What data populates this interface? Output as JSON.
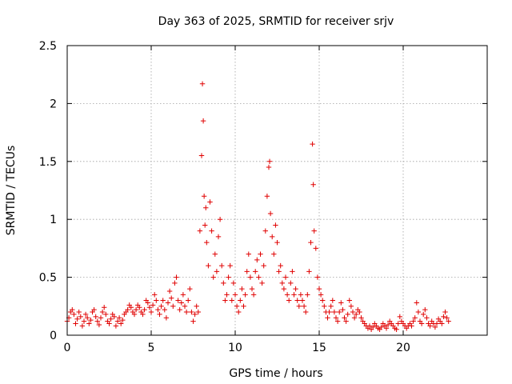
{
  "chart_data": {
    "type": "scatter",
    "title": "Day 363 of 2025, SRMTID for receiver srjv",
    "xlabel": "GPS time / hours",
    "ylabel": "SRMTID / TECUs",
    "xlim": [
      0,
      25
    ],
    "ylim": [
      0,
      2.5
    ],
    "xticks": [
      "0",
      "5",
      "10",
      "15",
      "20"
    ],
    "yticks": [
      "0",
      "0.5",
      "1",
      "1.5",
      "2",
      "2.5"
    ],
    "grid": true,
    "marker": "plus",
    "color": "#e00000",
    "series": [
      {
        "name": "SRMTID",
        "x": [
          0.0,
          0.1,
          0.2,
          0.3,
          0.4,
          0.5,
          0.6,
          0.7,
          0.8,
          0.9,
          1.0,
          1.1,
          1.2,
          1.3,
          1.4,
          1.5,
          1.6,
          1.7,
          1.8,
          1.9,
          2.0,
          2.1,
          2.2,
          2.3,
          2.4,
          2.5,
          2.6,
          2.7,
          2.8,
          2.9,
          3.0,
          3.1,
          3.2,
          3.3,
          3.4,
          3.5,
          3.6,
          3.7,
          3.8,
          3.9,
          4.0,
          4.1,
          4.2,
          4.3,
          4.4,
          4.5,
          4.6,
          4.7,
          4.8,
          4.9,
          5.0,
          5.1,
          5.2,
          5.3,
          5.4,
          5.5,
          5.6,
          5.7,
          5.8,
          5.9,
          6.0,
          6.1,
          6.2,
          6.3,
          6.4,
          6.5,
          6.6,
          6.7,
          6.8,
          6.9,
          7.0,
          7.1,
          7.2,
          7.3,
          7.4,
          7.5,
          7.6,
          7.7,
          7.8,
          7.9,
          8.0,
          8.05,
          8.1,
          8.15,
          8.2,
          8.25,
          8.3,
          8.4,
          8.5,
          8.6,
          8.7,
          8.8,
          8.9,
          9.0,
          9.1,
          9.2,
          9.3,
          9.4,
          9.5,
          9.6,
          9.7,
          9.8,
          9.9,
          10.0,
          10.1,
          10.2,
          10.3,
          10.4,
          10.5,
          10.6,
          10.7,
          10.8,
          10.9,
          11.0,
          11.1,
          11.2,
          11.3,
          11.4,
          11.5,
          11.6,
          11.7,
          11.8,
          11.9,
          12.0,
          12.05,
          12.1,
          12.2,
          12.3,
          12.4,
          12.5,
          12.6,
          12.7,
          12.8,
          12.9,
          13.0,
          13.1,
          13.2,
          13.3,
          13.4,
          13.5,
          13.6,
          13.7,
          13.8,
          13.9,
          14.0,
          14.1,
          14.2,
          14.3,
          14.4,
          14.5,
          14.6,
          14.65,
          14.7,
          14.8,
          14.9,
          15.0,
          15.1,
          15.2,
          15.3,
          15.4,
          15.5,
          15.6,
          15.7,
          15.8,
          15.9,
          16.0,
          16.1,
          16.2,
          16.3,
          16.4,
          16.5,
          16.6,
          16.7,
          16.8,
          16.9,
          17.0,
          17.1,
          17.2,
          17.3,
          17.4,
          17.5,
          17.6,
          17.7,
          17.8,
          17.9,
          18.0,
          18.1,
          18.2,
          18.3,
          18.4,
          18.5,
          18.6,
          18.7,
          18.8,
          18.9,
          19.0,
          19.1,
          19.2,
          19.3,
          19.4,
          19.5,
          19.6,
          19.7,
          19.8,
          19.9,
          20.0,
          20.1,
          20.2,
          20.3,
          20.4,
          20.5,
          20.6,
          20.7,
          20.8,
          20.9,
          21.0,
          21.1,
          21.2,
          21.3,
          21.4,
          21.5,
          21.6,
          21.7,
          21.8,
          21.9,
          22.0,
          22.1,
          22.2,
          22.3,
          22.4,
          22.5,
          22.6,
          22.7
        ],
        "y": [
          0.12,
          0.15,
          0.2,
          0.22,
          0.18,
          0.1,
          0.14,
          0.2,
          0.16,
          0.08,
          0.12,
          0.18,
          0.15,
          0.1,
          0.13,
          0.2,
          0.22,
          0.16,
          0.12,
          0.09,
          0.15,
          0.2,
          0.24,
          0.18,
          0.12,
          0.1,
          0.14,
          0.18,
          0.16,
          0.08,
          0.12,
          0.15,
          0.1,
          0.13,
          0.18,
          0.2,
          0.22,
          0.26,
          0.24,
          0.2,
          0.18,
          0.22,
          0.26,
          0.24,
          0.2,
          0.18,
          0.22,
          0.3,
          0.28,
          0.24,
          0.2,
          0.26,
          0.35,
          0.3,
          0.22,
          0.18,
          0.25,
          0.3,
          0.22,
          0.15,
          0.28,
          0.38,
          0.32,
          0.25,
          0.45,
          0.5,
          0.3,
          0.22,
          0.28,
          0.35,
          0.25,
          0.2,
          0.3,
          0.4,
          0.2,
          0.12,
          0.18,
          0.25,
          0.2,
          0.9,
          1.55,
          2.17,
          1.85,
          1.2,
          0.95,
          1.1,
          0.8,
          0.6,
          1.15,
          0.9,
          0.5,
          0.7,
          0.55,
          0.85,
          1.0,
          0.6,
          0.45,
          0.3,
          0.35,
          0.5,
          0.6,
          0.3,
          0.45,
          0.35,
          0.25,
          0.2,
          0.3,
          0.4,
          0.25,
          0.35,
          0.55,
          0.7,
          0.5,
          0.4,
          0.35,
          0.55,
          0.65,
          0.5,
          0.7,
          0.45,
          0.6,
          0.9,
          1.2,
          1.45,
          1.5,
          1.05,
          0.85,
          0.7,
          0.95,
          0.8,
          0.55,
          0.6,
          0.45,
          0.4,
          0.5,
          0.35,
          0.3,
          0.45,
          0.55,
          0.35,
          0.4,
          0.3,
          0.25,
          0.35,
          0.3,
          0.25,
          0.2,
          0.35,
          0.55,
          0.8,
          1.65,
          1.3,
          0.9,
          0.75,
          0.5,
          0.4,
          0.35,
          0.3,
          0.25,
          0.2,
          0.15,
          0.2,
          0.25,
          0.3,
          0.2,
          0.15,
          0.12,
          0.2,
          0.28,
          0.22,
          0.15,
          0.12,
          0.18,
          0.3,
          0.25,
          0.2,
          0.15,
          0.18,
          0.22,
          0.2,
          0.15,
          0.12,
          0.1,
          0.08,
          0.06,
          0.08,
          0.05,
          0.07,
          0.1,
          0.08,
          0.06,
          0.05,
          0.07,
          0.1,
          0.08,
          0.06,
          0.09,
          0.12,
          0.1,
          0.08,
          0.06,
          0.05,
          0.1,
          0.16,
          0.12,
          0.1,
          0.08,
          0.06,
          0.08,
          0.1,
          0.08,
          0.12,
          0.15,
          0.28,
          0.2,
          0.12,
          0.1,
          0.18,
          0.22,
          0.15,
          0.1,
          0.08,
          0.12,
          0.1,
          0.07,
          0.1,
          0.14,
          0.12,
          0.1,
          0.16,
          0.2,
          0.15,
          0.12
        ]
      }
    ]
  }
}
